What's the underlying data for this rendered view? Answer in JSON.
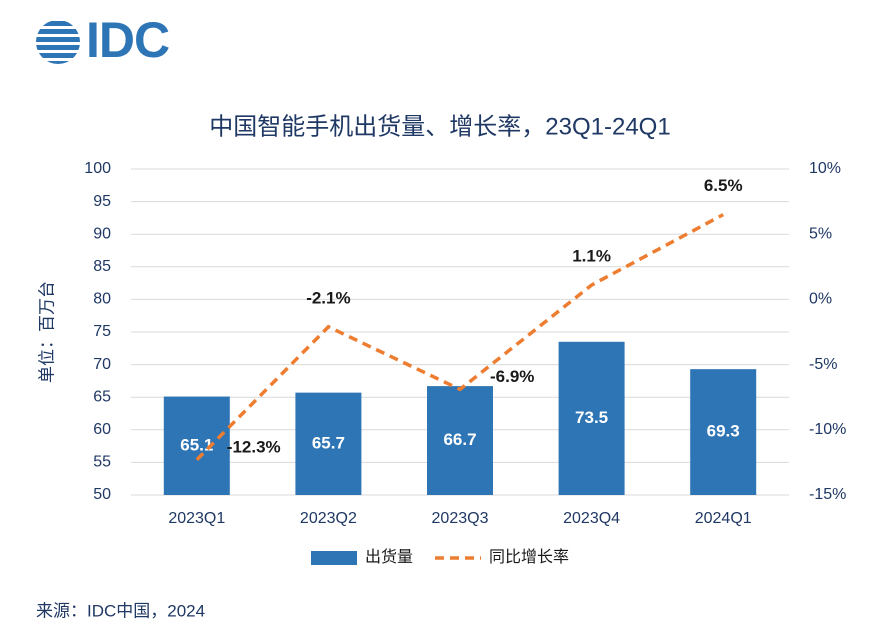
{
  "logo": "IDC",
  "source": "来源：IDC中国，2024",
  "chart_data": {
    "type": "bar-line",
    "title": "中国智能手机出货量、增长率，23Q1-24Q1",
    "y_label": "单位：百万台",
    "categories": [
      "2023Q1",
      "2023Q2",
      "2023Q3",
      "2023Q4",
      "2024Q1"
    ],
    "series": [
      {
        "name": "出货量",
        "type": "bar",
        "color": "#2e75b6",
        "values": [
          65.1,
          65.7,
          66.7,
          73.5,
          69.3
        ]
      },
      {
        "name": "同比增长率",
        "type": "line",
        "axis": "y2",
        "color": "#ed7d31",
        "values": [
          -12.3,
          -2.1,
          -6.9,
          1.1,
          6.5
        ],
        "value_labels": [
          "-12.3%",
          "-2.1%",
          "-6.9%",
          "1.1%",
          "6.5%"
        ]
      }
    ],
    "ylim": [
      50,
      100
    ],
    "yticks": [
      50,
      55,
      60,
      65,
      70,
      75,
      80,
      85,
      90,
      95,
      100
    ],
    "y2lim": [
      -15,
      10
    ],
    "y2ticks": [
      {
        "value": -15,
        "label": "-15%"
      },
      {
        "value": -10,
        "label": "-10%"
      },
      {
        "value": -5,
        "label": "-5%"
      },
      {
        "value": 0,
        "label": "0%"
      },
      {
        "value": 5,
        "label": "5%"
      },
      {
        "value": 10,
        "label": "10%"
      }
    ],
    "grid": true,
    "legend": "bottom"
  }
}
